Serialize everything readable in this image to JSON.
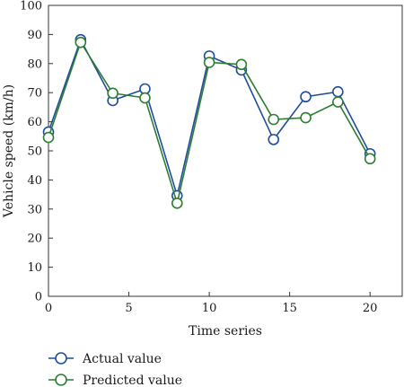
{
  "chart_data": {
    "type": "line",
    "xlabel": "Time series",
    "ylabel": "Vehicle speed (km/h)",
    "xlim": [
      0,
      22
    ],
    "ylim": [
      0,
      100
    ],
    "xticks": [
      0,
      5,
      10,
      15,
      20
    ],
    "yticks": [
      0,
      10,
      20,
      30,
      40,
      50,
      60,
      70,
      80,
      90,
      100
    ],
    "grid": false,
    "legend_position": "bottom-left",
    "x": [
      0,
      2,
      4,
      6,
      8,
      10,
      12,
      14,
      16,
      18,
      20
    ],
    "series": [
      {
        "name": "Actual value",
        "color": "#1f4e9c",
        "values": [
          56.5,
          88.2,
          67.3,
          71.3,
          34.6,
          82.6,
          77.8,
          53.9,
          68.6,
          70.3,
          49.0
        ]
      },
      {
        "name": "Predicted value",
        "color": "#2e7d32",
        "values": [
          54.6,
          87.3,
          69.8,
          68.2,
          32.0,
          80.4,
          79.7,
          60.8,
          61.4,
          66.8,
          47.3
        ]
      }
    ]
  }
}
